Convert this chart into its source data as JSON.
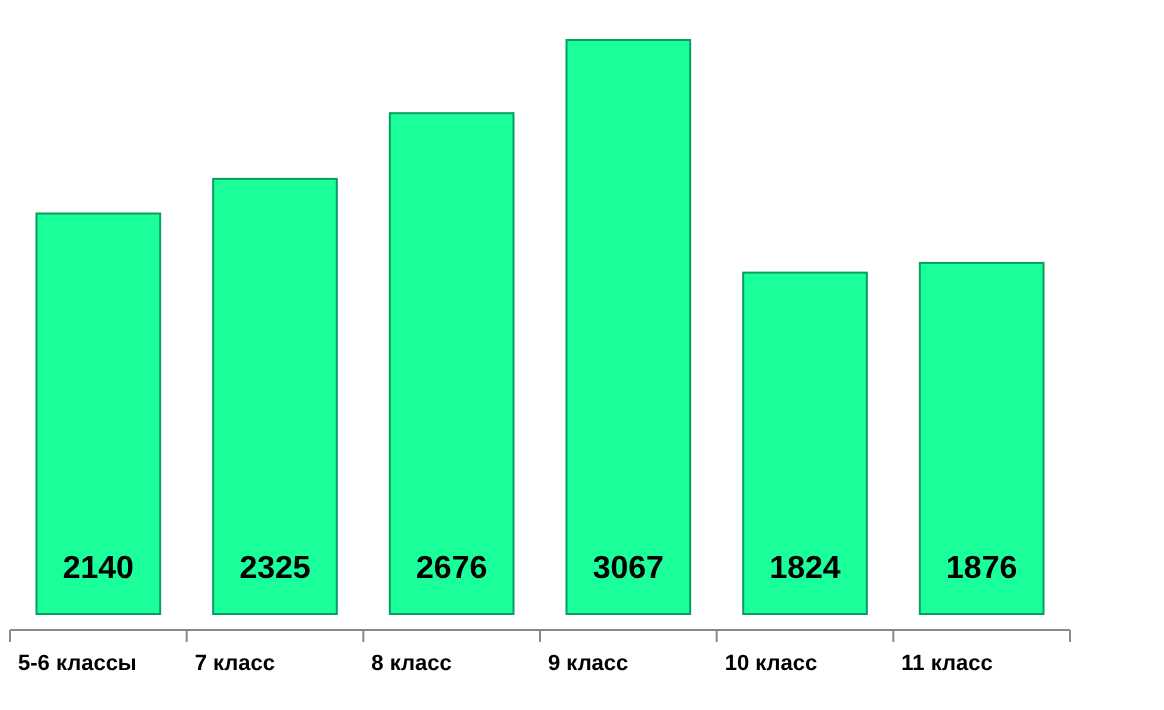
{
  "chart_data": {
    "type": "bar",
    "categories": [
      "5-6 классы",
      "7 класс",
      "8 класс",
      "9 класс",
      "10 класс",
      "11 класс"
    ],
    "values": [
      2140,
      2325,
      2676,
      3067,
      1824,
      1876
    ],
    "color": "#1aff9a",
    "data_labels": true
  }
}
